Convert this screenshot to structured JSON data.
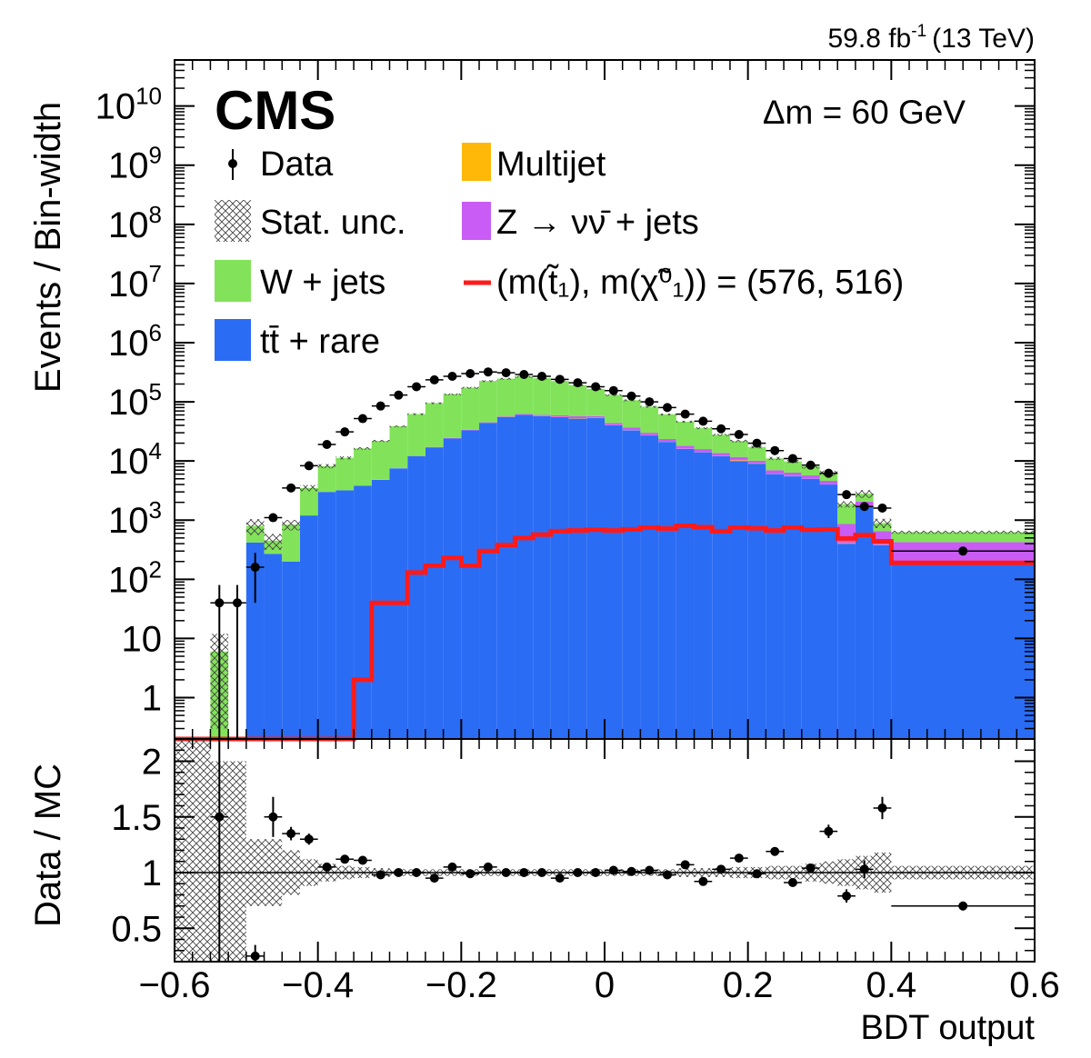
{
  "header": {
    "lumi_value": "59.8 fb",
    "lumi_exp": "-1",
    "lumi_energy": "(13 TeV)",
    "experiment": "CMS",
    "annotation": "Δm = 60 GeV"
  },
  "legend": {
    "data": "Data",
    "stat": "Stat. unc.",
    "wjets": "W + jets",
    "ttrare": "tt̄ + rare",
    "multijet": "Multijet",
    "znunu": "Z → νν̄ + jets",
    "signal": "(m(t̃₁), m(χ̃⁰₁)) = (576, 516)"
  },
  "colors": {
    "wjets": "#82e35a",
    "ttrare": "#2b6cf5",
    "multijet": "#ffb808",
    "znunu": "#c85cf5",
    "signal": "#ff1a1a",
    "data": "#000000"
  },
  "chart_data": [
    {
      "type": "bar",
      "subtype": "stacked_histogram_log",
      "xlabel": "",
      "ylabel": "Events / Bin-width",
      "xlim": [
        -0.6,
        0.6
      ],
      "ylim": [
        0.2,
        60000000000.0
      ],
      "yscale": "log",
      "x_ticks": [
        -0.6,
        -0.4,
        -0.2,
        0,
        0.2,
        0.4,
        0.6
      ],
      "x_tick_labels": [
        "−0.6",
        "−0.4",
        "−0.2",
        "0",
        "0.2",
        "0.4",
        "0.6"
      ],
      "y_ticks": [
        1,
        10,
        100,
        1000,
        10000,
        100000,
        1000000,
        10000000,
        100000000,
        1000000000,
        10000000000
      ],
      "y_tick_labels": [
        {
          "base": "1"
        },
        {
          "base": "10"
        },
        {
          "base": "10",
          "exp": "2"
        },
        {
          "base": "10",
          "exp": "3"
        },
        {
          "base": "10",
          "exp": "4"
        },
        {
          "base": "10",
          "exp": "5"
        },
        {
          "base": "10",
          "exp": "6"
        },
        {
          "base": "10",
          "exp": "7"
        },
        {
          "base": "10",
          "exp": "8"
        },
        {
          "base": "10",
          "exp": "9"
        },
        {
          "base": "10",
          "exp": "10"
        }
      ],
      "bin_edges": [
        -0.6,
        -0.55,
        -0.525,
        -0.5,
        -0.475,
        -0.45,
        -0.425,
        -0.4,
        -0.375,
        -0.35,
        -0.325,
        -0.3,
        -0.275,
        -0.25,
        -0.225,
        -0.2,
        -0.175,
        -0.15,
        -0.125,
        -0.1,
        -0.075,
        -0.05,
        -0.025,
        0,
        0.025,
        0.05,
        0.075,
        0.1,
        0.125,
        0.15,
        0.175,
        0.2,
        0.225,
        0.25,
        0.275,
        0.3,
        0.325,
        0.35,
        0.375,
        0.4,
        0.6
      ],
      "series": [
        {
          "name": "tt̄ + rare",
          "key": "ttrare",
          "values": [
            0,
            0,
            0,
            420,
            270,
            200,
            1200,
            3000,
            3200,
            3800,
            4800,
            7500,
            12000,
            17000,
            24000,
            33000,
            44000,
            55000,
            60000,
            57000,
            55000,
            52000,
            53000,
            40000,
            33000,
            27000,
            21000,
            16000,
            14000,
            12000,
            10000,
            9000,
            6000,
            5500,
            5000,
            4000,
            400,
            1700,
            380,
            200
          ]
        },
        {
          "name": "Multijet",
          "key": "multijet",
          "values": [
            0,
            0,
            0,
            0,
            0,
            0,
            0,
            0,
            0,
            0,
            0,
            0,
            0,
            0,
            0,
            0,
            0,
            0,
            200,
            400,
            600,
            800,
            400,
            200,
            300,
            200,
            100,
            100,
            100,
            100,
            300,
            100,
            50,
            50,
            20,
            20,
            10,
            10,
            5,
            5
          ]
        },
        {
          "name": "Z → νν̄ + jets",
          "key": "znunu",
          "values": [
            0,
            0,
            0,
            0,
            0,
            0,
            0,
            0,
            0.3,
            3,
            18,
            60,
            170,
            260,
            420,
            700,
            1100,
            1500,
            2300,
            2900,
            3600,
            4100,
            3800,
            3600,
            3300,
            2800,
            2400,
            2000,
            1800,
            1600,
            1400,
            1000,
            900,
            800,
            700,
            600,
            450,
            350,
            270,
            220
          ]
        },
        {
          "name": "W + jets",
          "key": "wjets",
          "values": [
            0,
            6,
            0,
            380,
            180,
            640,
            2300,
            5200,
            8100,
            12500,
            17000,
            31000,
            50000,
            78000,
            110000,
            140000,
            180000,
            190000,
            205000,
            190000,
            165000,
            135000,
            108000,
            87000,
            70000,
            53000,
            38000,
            28000,
            20000,
            14000,
            10000,
            7100,
            4100,
            3500,
            2400,
            1600,
            1000,
            740,
            240,
            200
          ]
        }
      ],
      "signal": {
        "name": "(m(t̃₁), m(χ̃⁰₁)) = (576, 516)",
        "values": [
          0,
          0,
          0,
          0,
          0,
          0,
          0,
          0,
          0,
          2,
          40,
          40,
          130,
          170,
          230,
          170,
          300,
          380,
          500,
          570,
          650,
          670,
          690,
          670,
          700,
          750,
          720,
          800,
          760,
          650,
          750,
          730,
          670,
          750,
          690,
          700,
          490,
          560,
          440,
          190
        ]
      },
      "data": {
        "name": "Data",
        "x": [
          -0.5375,
          -0.5125,
          -0.4875,
          -0.4625,
          -0.4375,
          -0.4125,
          -0.3875,
          -0.3625,
          -0.3375,
          -0.3125,
          -0.2875,
          -0.2625,
          -0.2375,
          -0.2125,
          -0.1875,
          -0.1625,
          -0.1375,
          -0.1125,
          -0.0875,
          -0.0625,
          -0.0375,
          -0.0125,
          0.0125,
          0.0375,
          0.0625,
          0.0875,
          0.1125,
          0.1375,
          0.1625,
          0.1875,
          0.2125,
          0.2375,
          0.2625,
          0.2875,
          0.3125,
          0.3375,
          0.3625,
          0.3875,
          0.5
        ],
        "y": [
          40,
          40,
          160,
          1100,
          3500,
          8300,
          19000,
          31000,
          52000,
          85000,
          130000,
          180000,
          235000,
          270000,
          300000,
          320000,
          310000,
          290000,
          270000,
          240000,
          210000,
          180000,
          155000,
          125000,
          100000,
          80000,
          62000,
          47000,
          35000,
          28000,
          20000,
          15000,
          11000,
          8500,
          6200,
          2700,
          1700,
          1600,
          300
        ],
        "y_err": [
          40,
          40,
          120,
          100,
          300,
          300,
          300,
          400,
          400,
          500,
          600,
          700,
          800,
          900,
          900,
          1000,
          1000,
          1000,
          900,
          900,
          900,
          800,
          700,
          700,
          600,
          500,
          400,
          400,
          350,
          300,
          300,
          250,
          200,
          180,
          160,
          100,
          80,
          80,
          30
        ]
      },
      "stat_unc_rel": [
        2.0,
        1.0,
        1.0,
        0.3,
        0.3,
        0.2,
        0.12,
        0.08,
        0.06,
        0.05,
        0.04,
        0.03,
        0.03,
        0.03,
        0.03,
        0.03,
        0.03,
        0.03,
        0.03,
        0.03,
        0.03,
        0.03,
        0.03,
        0.03,
        0.03,
        0.03,
        0.03,
        0.04,
        0.04,
        0.04,
        0.05,
        0.05,
        0.06,
        0.06,
        0.08,
        0.1,
        0.12,
        0.15,
        0.18,
        0.06
      ]
    },
    {
      "type": "scatter",
      "subtype": "ratio",
      "xlabel": "BDT output",
      "ylabel": "Data / MC",
      "xlim": [
        -0.6,
        0.6
      ],
      "ylim": [
        0.2,
        2.2
      ],
      "y_ticks": [
        0.5,
        1,
        1.5,
        2
      ],
      "y_tick_labels": [
        "0.5",
        "1",
        "1.5",
        "2"
      ],
      "x": [
        -0.5375,
        -0.4875,
        -0.4625,
        -0.4375,
        -0.4125,
        -0.3875,
        -0.3625,
        -0.3375,
        -0.3125,
        -0.2875,
        -0.2625,
        -0.2375,
        -0.2125,
        -0.1875,
        -0.1625,
        -0.1375,
        -0.1125,
        -0.0875,
        -0.0625,
        -0.0375,
        -0.0125,
        0.0125,
        0.0375,
        0.0625,
        0.0875,
        0.1125,
        0.1375,
        0.1625,
        0.1875,
        0.2125,
        0.2375,
        0.2625,
        0.2875,
        0.3125,
        0.3375,
        0.3625,
        0.3875,
        0.5
      ],
      "y": [
        1.5,
        0.25,
        1.5,
        1.35,
        1.3,
        1.05,
        1.12,
        1.11,
        0.98,
        1.0,
        1.0,
        0.95,
        1.05,
        0.99,
        1.05,
        1.0,
        1.0,
        1.0,
        0.95,
        1.0,
        1.0,
        1.02,
        1.01,
        1.02,
        0.98,
        1.07,
        0.92,
        1.03,
        1.13,
        0.99,
        1.19,
        0.91,
        1.04,
        1.37,
        0.79,
        1.03,
        1.58,
        0.7
      ],
      "y_err": [
        2.0,
        0.1,
        0.18,
        0.06,
        0.05,
        0.02,
        0.02,
        0.02,
        0.01,
        0.01,
        0.01,
        0.01,
        0.01,
        0.01,
        0.01,
        0.01,
        0.01,
        0.01,
        0.01,
        0.01,
        0.01,
        0.01,
        0.01,
        0.01,
        0.01,
        0.01,
        0.01,
        0.01,
        0.02,
        0.02,
        0.03,
        0.03,
        0.04,
        0.06,
        0.06,
        0.08,
        0.1,
        0.04
      ],
      "reference_line": 1
    }
  ]
}
